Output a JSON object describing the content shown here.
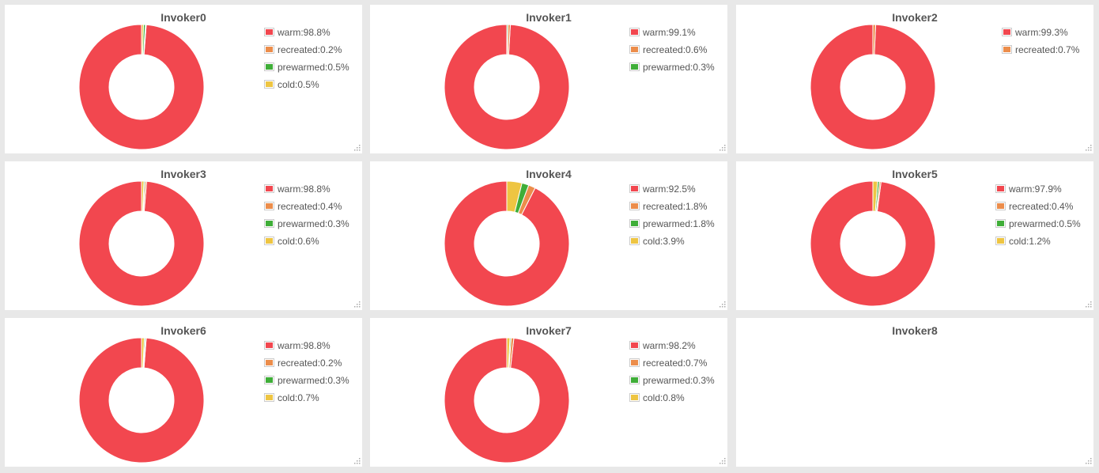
{
  "colors": {
    "warm": "#f2474f",
    "recreated": "#ec8d4b",
    "prewarmed": "#3fae38",
    "cold": "#eec542"
  },
  "chart_data": [
    {
      "type": "pie",
      "title": "Invoker0",
      "slices": [
        {
          "name": "warm",
          "value": 98.8,
          "label": "warm:98.8%"
        },
        {
          "name": "recreated",
          "value": 0.2,
          "label": "recreated:0.2%"
        },
        {
          "name": "prewarmed",
          "value": 0.5,
          "label": "prewarmed:0.5%"
        },
        {
          "name": "cold",
          "value": 0.5,
          "label": "cold:0.5%"
        }
      ]
    },
    {
      "type": "pie",
      "title": "Invoker1",
      "slices": [
        {
          "name": "warm",
          "value": 99.1,
          "label": "warm:99.1%"
        },
        {
          "name": "recreated",
          "value": 0.6,
          "label": "recreated:0.6%"
        },
        {
          "name": "prewarmed",
          "value": 0.3,
          "label": "prewarmed:0.3%"
        }
      ]
    },
    {
      "type": "pie",
      "title": "Invoker2",
      "slices": [
        {
          "name": "warm",
          "value": 99.3,
          "label": "warm:99.3%"
        },
        {
          "name": "recreated",
          "value": 0.7,
          "label": "recreated:0.7%"
        }
      ]
    },
    {
      "type": "pie",
      "title": "Invoker3",
      "slices": [
        {
          "name": "warm",
          "value": 98.8,
          "label": "warm:98.8%"
        },
        {
          "name": "recreated",
          "value": 0.4,
          "label": "recreated:0.4%"
        },
        {
          "name": "prewarmed",
          "value": 0.3,
          "label": "prewarmed:0.3%"
        },
        {
          "name": "cold",
          "value": 0.6,
          "label": "cold:0.6%"
        }
      ]
    },
    {
      "type": "pie",
      "title": "Invoker4",
      "slices": [
        {
          "name": "warm",
          "value": 92.5,
          "label": "warm:92.5%"
        },
        {
          "name": "recreated",
          "value": 1.8,
          "label": "recreated:1.8%"
        },
        {
          "name": "prewarmed",
          "value": 1.8,
          "label": "prewarmed:1.8%"
        },
        {
          "name": "cold",
          "value": 3.9,
          "label": "cold:3.9%"
        }
      ]
    },
    {
      "type": "pie",
      "title": "Invoker5",
      "slices": [
        {
          "name": "warm",
          "value": 97.9,
          "label": "warm:97.9%"
        },
        {
          "name": "recreated",
          "value": 0.4,
          "label": "recreated:0.4%"
        },
        {
          "name": "prewarmed",
          "value": 0.5,
          "label": "prewarmed:0.5%"
        },
        {
          "name": "cold",
          "value": 1.2,
          "label": "cold:1.2%"
        }
      ]
    },
    {
      "type": "pie",
      "title": "Invoker6",
      "slices": [
        {
          "name": "warm",
          "value": 98.8,
          "label": "warm:98.8%"
        },
        {
          "name": "recreated",
          "value": 0.2,
          "label": "recreated:0.2%"
        },
        {
          "name": "prewarmed",
          "value": 0.3,
          "label": "prewarmed:0.3%"
        },
        {
          "name": "cold",
          "value": 0.7,
          "label": "cold:0.7%"
        }
      ]
    },
    {
      "type": "pie",
      "title": "Invoker7",
      "slices": [
        {
          "name": "warm",
          "value": 98.2,
          "label": "warm:98.2%"
        },
        {
          "name": "recreated",
          "value": 0.7,
          "label": "recreated:0.7%"
        },
        {
          "name": "prewarmed",
          "value": 0.3,
          "label": "prewarmed:0.3%"
        },
        {
          "name": "cold",
          "value": 0.8,
          "label": "cold:0.8%"
        }
      ]
    },
    {
      "type": "pie",
      "title": "Invoker8",
      "slices": []
    }
  ]
}
